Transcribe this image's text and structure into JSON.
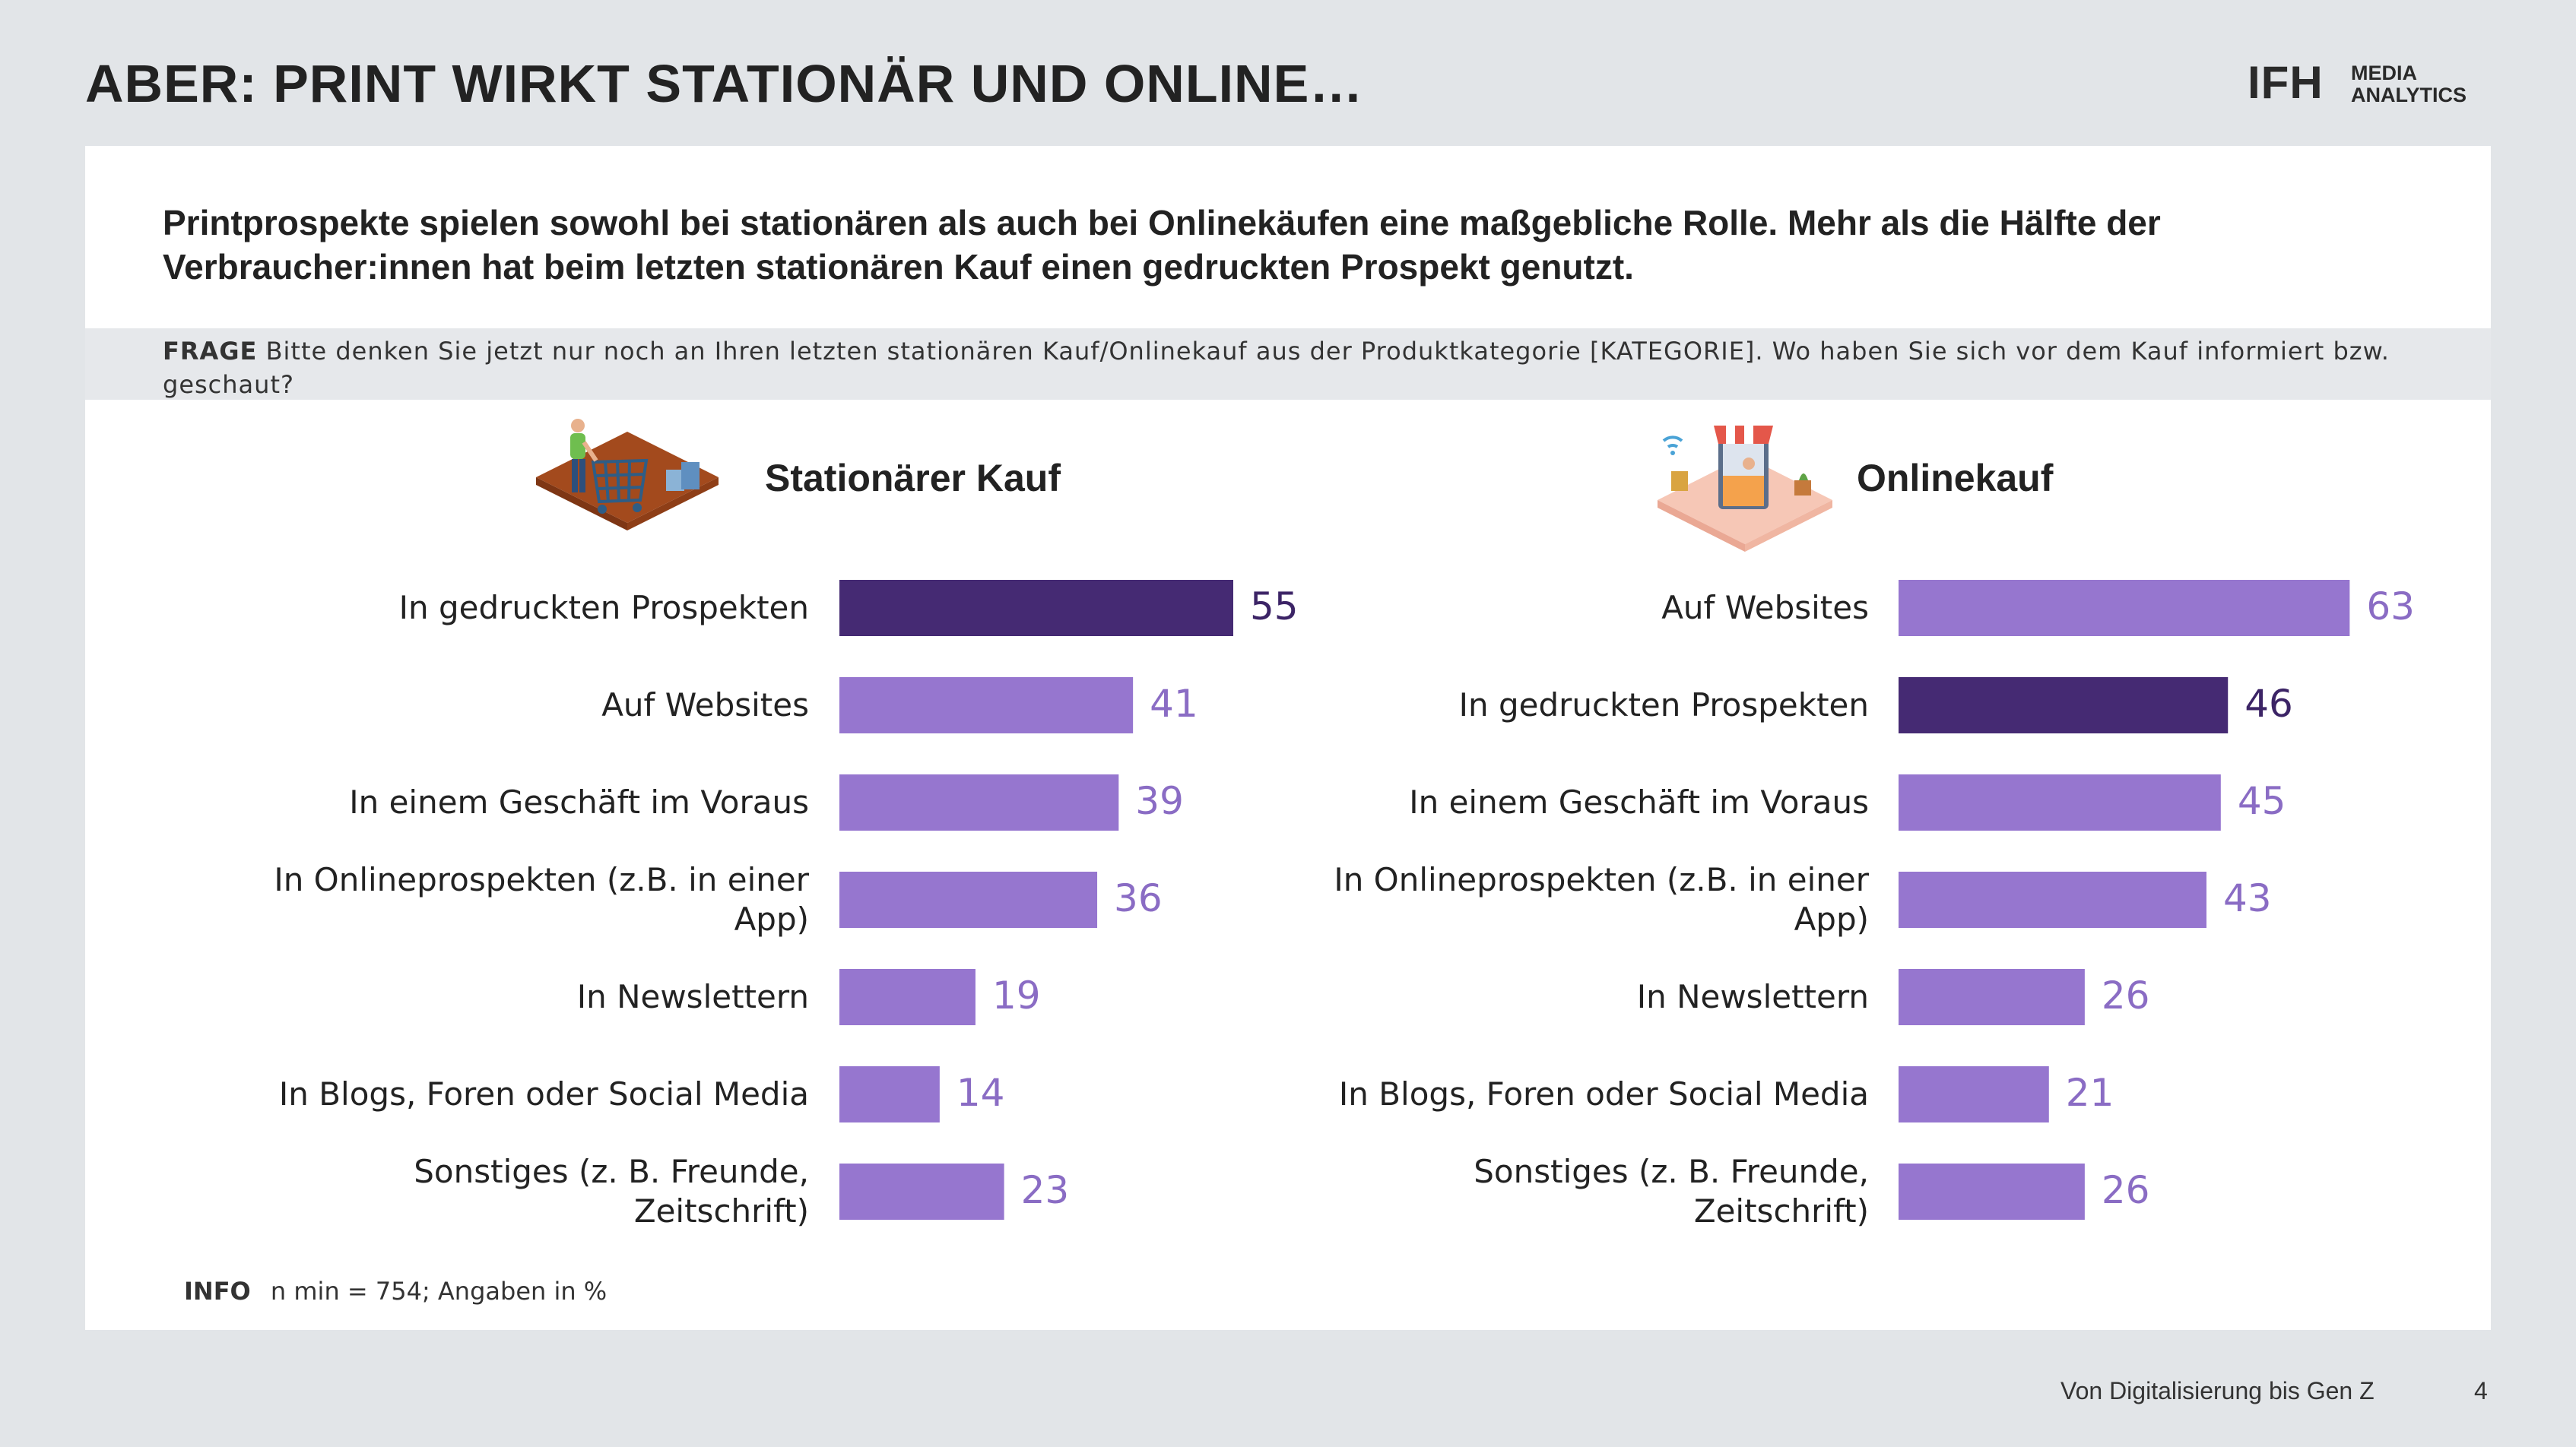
{
  "page": {
    "title": "ABER: PRINT WIRKT STATIONÄR UND ONLINE…",
    "logo": {
      "brand": "IFH",
      "line1": "MEDIA",
      "line2": "ANALYTICS"
    },
    "lead": "Printprospekte spielen sowohl bei stationären als auch bei Onlinekäufen eine maßgebliche Rolle. Mehr als die Hälfte der Verbraucher:innen hat beim letzten stationären Kauf einen gedruckten Prospekt genutzt.",
    "frage_label": "FRAGE",
    "frage_text": "Bitte denken Sie jetzt nur noch an Ihren letzten stationären Kauf/Onlinekauf aus der Produktkategorie [KATEGORIE]. Wo haben Sie sich vor dem Kauf informiert bzw. geschaut?",
    "info_label": "INFO",
    "info_text": "n min = 754; Angaben in %",
    "footer_text": "Von Digitalisierung bis Gen Z",
    "page_number": "4"
  },
  "colors": {
    "highlight": "#452a73",
    "bar": "#9676cf",
    "value_light": "#8a6cc4",
    "value_dark": "#3c2466"
  },
  "icons": {
    "left": "shopping-cart-store-icon",
    "right": "online-shop-icon"
  },
  "chart_data": [
    {
      "type": "bar",
      "orientation": "horizontal",
      "title": "Stationärer Kauf",
      "categories": [
        "In gedruckten Prospekten",
        "Auf Websites",
        "In einem Geschäft im Voraus",
        "In Onlineprospekten (z.B. in einer App)",
        "In Newslettern",
        "In Blogs, Foren oder Social Media",
        "Sonstiges (z. B. Freunde, Zeitschrift)"
      ],
      "label_lines": [
        [
          "In gedruckten Prospekten"
        ],
        [
          "Auf Websites"
        ],
        [
          "In einem Geschäft im Voraus"
        ],
        [
          "In Onlineprospekten (z.B. in einer",
          "App)"
        ],
        [
          "In Newslettern"
        ],
        [
          "In Blogs, Foren oder Social Media"
        ],
        [
          "Sonstiges (z. B. Freunde,",
          "Zeitschrift)"
        ]
      ],
      "values": [
        55,
        41,
        39,
        36,
        19,
        14,
        23
      ],
      "highlight_index": 0,
      "unit": "%",
      "xlim": [
        0,
        100
      ],
      "grid": false,
      "legend": "none"
    },
    {
      "type": "bar",
      "orientation": "horizontal",
      "title": "Onlinekauf",
      "categories": [
        "Auf Websites",
        "In gedruckten Prospekten",
        "In einem Geschäft im Voraus",
        "In Onlineprospekten (z.B. in einer App)",
        "In Newslettern",
        "In Blogs, Foren oder Social Media",
        "Sonstiges (z. B. Freunde, Zeitschrift)"
      ],
      "label_lines": [
        [
          "Auf Websites"
        ],
        [
          "In gedruckten Prospekten"
        ],
        [
          "In einem Geschäft im Voraus"
        ],
        [
          "In Onlineprospekten (z.B. in einer",
          "App)"
        ],
        [
          "In Newslettern"
        ],
        [
          "In Blogs, Foren oder Social Media"
        ],
        [
          "Sonstiges (z. B. Freunde,",
          "Zeitschrift)"
        ]
      ],
      "values": [
        63,
        46,
        45,
        43,
        26,
        21,
        26
      ],
      "highlight_index": 1,
      "unit": "%",
      "xlim": [
        0,
        100
      ],
      "grid": false,
      "legend": "none"
    }
  ]
}
